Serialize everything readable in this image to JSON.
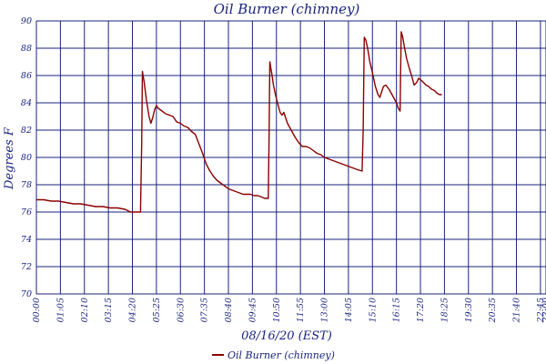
{
  "chart_data": {
    "type": "line",
    "title": "Oil Burner (chimney)",
    "xlabel": "08/16/20 (EST)",
    "ylabel": "Degrees F",
    "xlim": [
      0,
      1380
    ],
    "ylim": [
      70,
      90
    ],
    "y_ticks": [
      "70",
      "72",
      "74",
      "76",
      "78",
      "80",
      "82",
      "84",
      "86",
      "88",
      "90"
    ],
    "x_ticks": [
      {
        "t": 0,
        "label": "00:00"
      },
      {
        "t": 65,
        "label": "01:05"
      },
      {
        "t": 130,
        "label": "02:10"
      },
      {
        "t": 195,
        "label": "03:15"
      },
      {
        "t": 260,
        "label": "04:20"
      },
      {
        "t": 325,
        "label": "05:25"
      },
      {
        "t": 390,
        "label": "06:30"
      },
      {
        "t": 455,
        "label": "07:35"
      },
      {
        "t": 520,
        "label": "08:40"
      },
      {
        "t": 585,
        "label": "09:45"
      },
      {
        "t": 650,
        "label": "10:50"
      },
      {
        "t": 715,
        "label": "11:55"
      },
      {
        "t": 780,
        "label": "13:00"
      },
      {
        "t": 845,
        "label": "14:05"
      },
      {
        "t": 910,
        "label": "15:10"
      },
      {
        "t": 975,
        "label": "16:15"
      },
      {
        "t": 1040,
        "label": "17:20"
      },
      {
        "t": 1105,
        "label": "18:25"
      },
      {
        "t": 1170,
        "label": "19:30"
      },
      {
        "t": 1235,
        "label": "20:35"
      },
      {
        "t": 1300,
        "label": "21:40"
      },
      {
        "t": 1365,
        "label": "22:45"
      },
      {
        "t": 1380,
        "label": "23:00"
      }
    ],
    "grid": true,
    "legend_position": "bottom-center",
    "series": [
      {
        "name": "Oil Burner (chimney)",
        "color": "#8b0000",
        "points": [
          [
            0,
            76.9
          ],
          [
            20,
            76.9
          ],
          [
            40,
            76.8
          ],
          [
            60,
            76.8
          ],
          [
            80,
            76.7
          ],
          [
            100,
            76.6
          ],
          [
            120,
            76.6
          ],
          [
            140,
            76.5
          ],
          [
            160,
            76.4
          ],
          [
            180,
            76.4
          ],
          [
            200,
            76.3
          ],
          [
            220,
            76.3
          ],
          [
            240,
            76.2
          ],
          [
            255,
            76.0
          ],
          [
            265,
            76.0
          ],
          [
            282,
            76.0
          ],
          [
            285,
            81.0
          ],
          [
            287,
            86.3
          ],
          [
            292,
            85.5
          ],
          [
            298,
            84.2
          ],
          [
            305,
            83.0
          ],
          [
            310,
            82.5
          ],
          [
            315,
            82.9
          ],
          [
            320,
            83.5
          ],
          [
            325,
            83.8
          ],
          [
            330,
            83.6
          ],
          [
            340,
            83.4
          ],
          [
            350,
            83.2
          ],
          [
            360,
            83.1
          ],
          [
            370,
            83.0
          ],
          [
            380,
            82.6
          ],
          [
            390,
            82.5
          ],
          [
            400,
            82.3
          ],
          [
            410,
            82.2
          ],
          [
            420,
            81.9
          ],
          [
            430,
            81.7
          ],
          [
            440,
            81.0
          ],
          [
            450,
            80.3
          ],
          [
            460,
            79.5
          ],
          [
            470,
            79.0
          ],
          [
            480,
            78.6
          ],
          [
            490,
            78.3
          ],
          [
            500,
            78.1
          ],
          [
            510,
            77.9
          ],
          [
            520,
            77.7
          ],
          [
            530,
            77.6
          ],
          [
            540,
            77.5
          ],
          [
            550,
            77.4
          ],
          [
            560,
            77.3
          ],
          [
            570,
            77.3
          ],
          [
            580,
            77.3
          ],
          [
            590,
            77.2
          ],
          [
            600,
            77.2
          ],
          [
            610,
            77.1
          ],
          [
            618,
            77.0
          ],
          [
            628,
            77.0
          ],
          [
            630,
            81.5
          ],
          [
            632,
            87.0
          ],
          [
            637,
            86.2
          ],
          [
            642,
            85.3
          ],
          [
            648,
            84.5
          ],
          [
            655,
            83.8
          ],
          [
            660,
            83.3
          ],
          [
            665,
            83.1
          ],
          [
            670,
            83.3
          ],
          [
            675,
            82.9
          ],
          [
            680,
            82.5
          ],
          [
            690,
            82.0
          ],
          [
            700,
            81.5
          ],
          [
            710,
            81.1
          ],
          [
            720,
            80.8
          ],
          [
            730,
            80.8
          ],
          [
            740,
            80.7
          ],
          [
            750,
            80.5
          ],
          [
            760,
            80.3
          ],
          [
            770,
            80.2
          ],
          [
            780,
            80.0
          ],
          [
            790,
            79.9
          ],
          [
            800,
            79.8
          ],
          [
            810,
            79.7
          ],
          [
            820,
            79.6
          ],
          [
            830,
            79.5
          ],
          [
            840,
            79.4
          ],
          [
            850,
            79.3
          ],
          [
            860,
            79.2
          ],
          [
            870,
            79.1
          ],
          [
            882,
            79.0
          ],
          [
            885,
            82.0
          ],
          [
            888,
            88.8
          ],
          [
            892,
            88.6
          ],
          [
            897,
            88.0
          ],
          [
            903,
            87.0
          ],
          [
            910,
            86.2
          ],
          [
            918,
            85.2
          ],
          [
            925,
            84.6
          ],
          [
            930,
            84.4
          ],
          [
            935,
            84.8
          ],
          [
            940,
            85.2
          ],
          [
            946,
            85.3
          ],
          [
            955,
            85.0
          ],
          [
            965,
            84.5
          ],
          [
            975,
            84.0
          ],
          [
            980,
            83.6
          ],
          [
            985,
            83.4
          ],
          [
            986,
            85.5
          ],
          [
            988,
            89.2
          ],
          [
            992,
            88.8
          ],
          [
            997,
            88.0
          ],
          [
            1003,
            87.2
          ],
          [
            1010,
            86.5
          ],
          [
            1017,
            85.9
          ],
          [
            1023,
            85.3
          ],
          [
            1030,
            85.5
          ],
          [
            1035,
            85.8
          ],
          [
            1040,
            85.7
          ],
          [
            1048,
            85.5
          ],
          [
            1055,
            85.3
          ],
          [
            1062,
            85.2
          ],
          [
            1070,
            85.0
          ],
          [
            1078,
            84.9
          ],
          [
            1085,
            84.7
          ],
          [
            1092,
            84.6
          ],
          [
            1098,
            84.6
          ]
        ]
      }
    ]
  }
}
